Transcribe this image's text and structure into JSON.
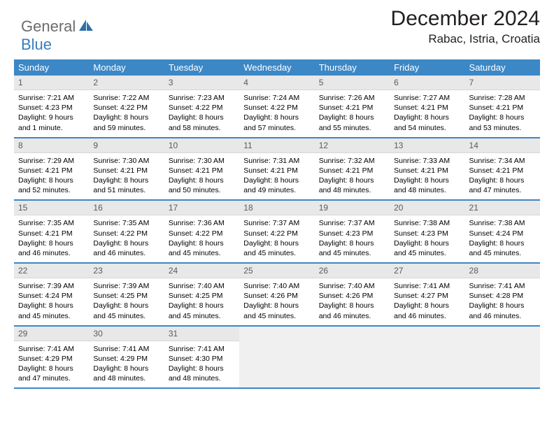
{
  "logo": {
    "text1": "General",
    "text2": "Blue"
  },
  "title": "December 2024",
  "location": "Rabac, Istria, Croatia",
  "colors": {
    "header_bg": "#3c87c6",
    "header_text": "#ffffff",
    "daynum_bg": "#e8e8e8",
    "daynum_text": "#5b5b5b",
    "row_border": "#3c87c6",
    "empty_bg": "#f0f0f0",
    "logo_general": "#6b6b6b",
    "logo_blue": "#3a7cc0"
  },
  "weekdays": [
    "Sunday",
    "Monday",
    "Tuesday",
    "Wednesday",
    "Thursday",
    "Friday",
    "Saturday"
  ],
  "days": [
    {
      "n": 1,
      "sr": "7:21 AM",
      "ss": "4:23 PM",
      "dl": "9 hours and 1 minute."
    },
    {
      "n": 2,
      "sr": "7:22 AM",
      "ss": "4:22 PM",
      "dl": "8 hours and 59 minutes."
    },
    {
      "n": 3,
      "sr": "7:23 AM",
      "ss": "4:22 PM",
      "dl": "8 hours and 58 minutes."
    },
    {
      "n": 4,
      "sr": "7:24 AM",
      "ss": "4:22 PM",
      "dl": "8 hours and 57 minutes."
    },
    {
      "n": 5,
      "sr": "7:26 AM",
      "ss": "4:21 PM",
      "dl": "8 hours and 55 minutes."
    },
    {
      "n": 6,
      "sr": "7:27 AM",
      "ss": "4:21 PM",
      "dl": "8 hours and 54 minutes."
    },
    {
      "n": 7,
      "sr": "7:28 AM",
      "ss": "4:21 PM",
      "dl": "8 hours and 53 minutes."
    },
    {
      "n": 8,
      "sr": "7:29 AM",
      "ss": "4:21 PM",
      "dl": "8 hours and 52 minutes."
    },
    {
      "n": 9,
      "sr": "7:30 AM",
      "ss": "4:21 PM",
      "dl": "8 hours and 51 minutes."
    },
    {
      "n": 10,
      "sr": "7:30 AM",
      "ss": "4:21 PM",
      "dl": "8 hours and 50 minutes."
    },
    {
      "n": 11,
      "sr": "7:31 AM",
      "ss": "4:21 PM",
      "dl": "8 hours and 49 minutes."
    },
    {
      "n": 12,
      "sr": "7:32 AM",
      "ss": "4:21 PM",
      "dl": "8 hours and 48 minutes."
    },
    {
      "n": 13,
      "sr": "7:33 AM",
      "ss": "4:21 PM",
      "dl": "8 hours and 48 minutes."
    },
    {
      "n": 14,
      "sr": "7:34 AM",
      "ss": "4:21 PM",
      "dl": "8 hours and 47 minutes."
    },
    {
      "n": 15,
      "sr": "7:35 AM",
      "ss": "4:21 PM",
      "dl": "8 hours and 46 minutes."
    },
    {
      "n": 16,
      "sr": "7:35 AM",
      "ss": "4:22 PM",
      "dl": "8 hours and 46 minutes."
    },
    {
      "n": 17,
      "sr": "7:36 AM",
      "ss": "4:22 PM",
      "dl": "8 hours and 45 minutes."
    },
    {
      "n": 18,
      "sr": "7:37 AM",
      "ss": "4:22 PM",
      "dl": "8 hours and 45 minutes."
    },
    {
      "n": 19,
      "sr": "7:37 AM",
      "ss": "4:23 PM",
      "dl": "8 hours and 45 minutes."
    },
    {
      "n": 20,
      "sr": "7:38 AM",
      "ss": "4:23 PM",
      "dl": "8 hours and 45 minutes."
    },
    {
      "n": 21,
      "sr": "7:38 AM",
      "ss": "4:24 PM",
      "dl": "8 hours and 45 minutes."
    },
    {
      "n": 22,
      "sr": "7:39 AM",
      "ss": "4:24 PM",
      "dl": "8 hours and 45 minutes."
    },
    {
      "n": 23,
      "sr": "7:39 AM",
      "ss": "4:25 PM",
      "dl": "8 hours and 45 minutes."
    },
    {
      "n": 24,
      "sr": "7:40 AM",
      "ss": "4:25 PM",
      "dl": "8 hours and 45 minutes."
    },
    {
      "n": 25,
      "sr": "7:40 AM",
      "ss": "4:26 PM",
      "dl": "8 hours and 45 minutes."
    },
    {
      "n": 26,
      "sr": "7:40 AM",
      "ss": "4:26 PM",
      "dl": "8 hours and 46 minutes."
    },
    {
      "n": 27,
      "sr": "7:41 AM",
      "ss": "4:27 PM",
      "dl": "8 hours and 46 minutes."
    },
    {
      "n": 28,
      "sr": "7:41 AM",
      "ss": "4:28 PM",
      "dl": "8 hours and 46 minutes."
    },
    {
      "n": 29,
      "sr": "7:41 AM",
      "ss": "4:29 PM",
      "dl": "8 hours and 47 minutes."
    },
    {
      "n": 30,
      "sr": "7:41 AM",
      "ss": "4:29 PM",
      "dl": "8 hours and 48 minutes."
    },
    {
      "n": 31,
      "sr": "7:41 AM",
      "ss": "4:30 PM",
      "dl": "8 hours and 48 minutes."
    }
  ],
  "labels": {
    "sunrise": "Sunrise:",
    "sunset": "Sunset:",
    "daylight": "Daylight:"
  },
  "start_weekday": 0,
  "trailing_empty": 4
}
